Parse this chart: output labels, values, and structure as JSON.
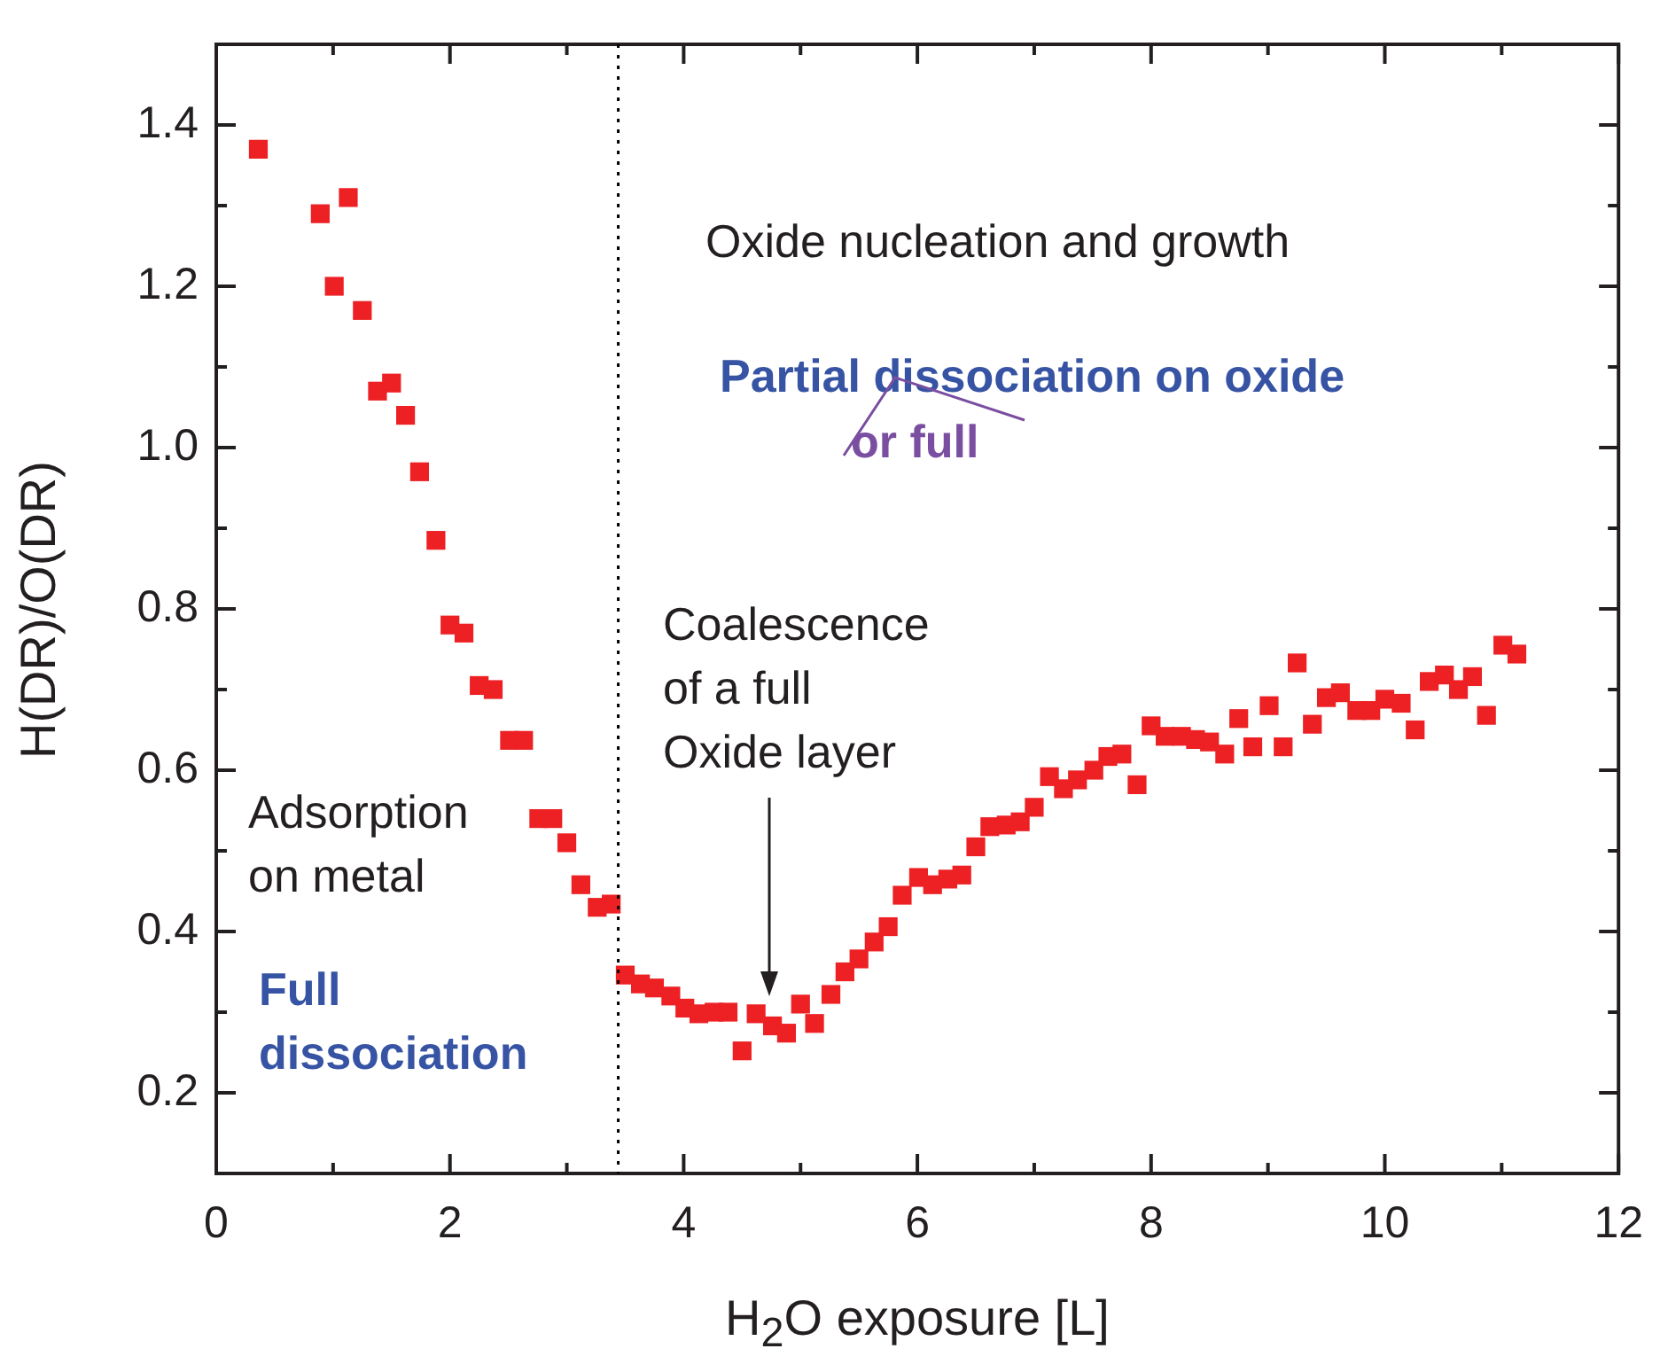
{
  "chart_data": {
    "type": "scatter",
    "xlabel": "H$_{2}$O exposure [L]",
    "ylabel": "H(DR)/O(DR)",
    "xlim": [
      0,
      12
    ],
    "ylim": [
      0.1,
      1.5
    ],
    "xticks": [
      0,
      {
        "value": 1,
        "label": null
      },
      2,
      {
        "value": 3,
        "label": null
      },
      4,
      {
        "value": 5,
        "label": null
      },
      6,
      {
        "value": 7,
        "label": null
      },
      8,
      {
        "value": 9,
        "label": null
      },
      10,
      {
        "value": 11,
        "label": null
      },
      12
    ],
    "yticks": [
      {
        "value": 0.1,
        "label": null
      },
      0.2,
      {
        "value": 0.3,
        "label": null
      },
      0.4,
      {
        "value": 0.5,
        "label": null
      },
      0.6,
      {
        "value": 0.7,
        "label": null
      },
      0.8,
      {
        "value": 0.9,
        "label": null
      },
      {
        "value": 1.0,
        "label": "1.0"
      },
      {
        "value": 1.1,
        "label": null
      },
      1.2,
      {
        "value": 1.3,
        "label": null
      },
      1.4,
      {
        "value": 1.5,
        "label": null
      }
    ],
    "marker": "square",
    "grid": false,
    "legend": false,
    "ref_lines": [
      {
        "axis": "x",
        "value": 3.44,
        "label": null,
        "color": "#000000",
        "line_style": "dotted"
      }
    ],
    "annotations": [
      "Oxide nucleation and growth",
      "Partial dissociation on oxide",
      "or full",
      "Coalescence\nof a full\nOxide layer",
      "Adsorption\non metal",
      "Full\ndissociation"
    ],
    "series": [
      {
        "color": "#ed2024",
        "x": [
          0.36,
          0.89,
          1.13,
          1.01,
          1.25,
          1.38,
          1.5,
          1.62,
          1.74,
          1.88,
          2.0,
          2.12,
          2.25,
          2.37,
          2.51,
          2.63,
          2.76,
          2.88,
          3.0,
          3.12,
          3.26,
          3.38,
          3.5,
          3.63,
          3.75,
          3.89,
          4.01,
          4.13,
          4.26,
          4.38,
          4.5,
          4.62,
          4.76,
          4.88,
          5.0,
          5.12,
          5.26,
          5.38,
          5.5,
          5.63,
          5.75,
          5.87,
          6.01,
          6.13,
          6.26,
          6.38,
          6.5,
          6.62,
          6.76,
          6.88,
          7.0,
          7.13,
          7.25,
          7.37,
          7.51,
          7.63,
          7.75,
          7.88,
          8.0,
          8.12,
          8.26,
          8.38,
          8.5,
          8.63,
          8.75,
          8.87,
          9.01,
          9.13,
          9.25,
          9.38,
          9.5,
          9.62,
          9.76,
          9.88,
          10.0,
          10.14,
          10.26,
          10.38,
          10.51,
          10.63,
          10.75,
          10.87,
          11.01,
          11.13
        ],
        "values": [
          1.37,
          1.29,
          1.31,
          1.2,
          1.17,
          1.07,
          1.08,
          1.04,
          0.97,
          0.885,
          0.78,
          0.77,
          0.705,
          0.7,
          0.637,
          0.637,
          0.54,
          0.54,
          0.51,
          0.458,
          0.43,
          0.434,
          0.346,
          0.335,
          0.33,
          0.32,
          0.305,
          0.298,
          0.3,
          0.3,
          0.252,
          0.298,
          0.283,
          0.274,
          0.31,
          0.286,
          0.322,
          0.35,
          0.366,
          0.387,
          0.406,
          0.445,
          0.467,
          0.458,
          0.465,
          0.47,
          0.505,
          0.53,
          0.532,
          0.536,
          0.554,
          0.592,
          0.577,
          0.588,
          0.6,
          0.617,
          0.62,
          0.582,
          0.655,
          0.642,
          0.642,
          0.638,
          0.635,
          0.62,
          0.664,
          0.629,
          0.68,
          0.629,
          0.733,
          0.657,
          0.69,
          0.696,
          0.674,
          0.674,
          0.688,
          0.683,
          0.65,
          0.71,
          0.718,
          0.7,
          0.716,
          0.668,
          0.755,
          0.744
        ]
      }
    ]
  }
}
